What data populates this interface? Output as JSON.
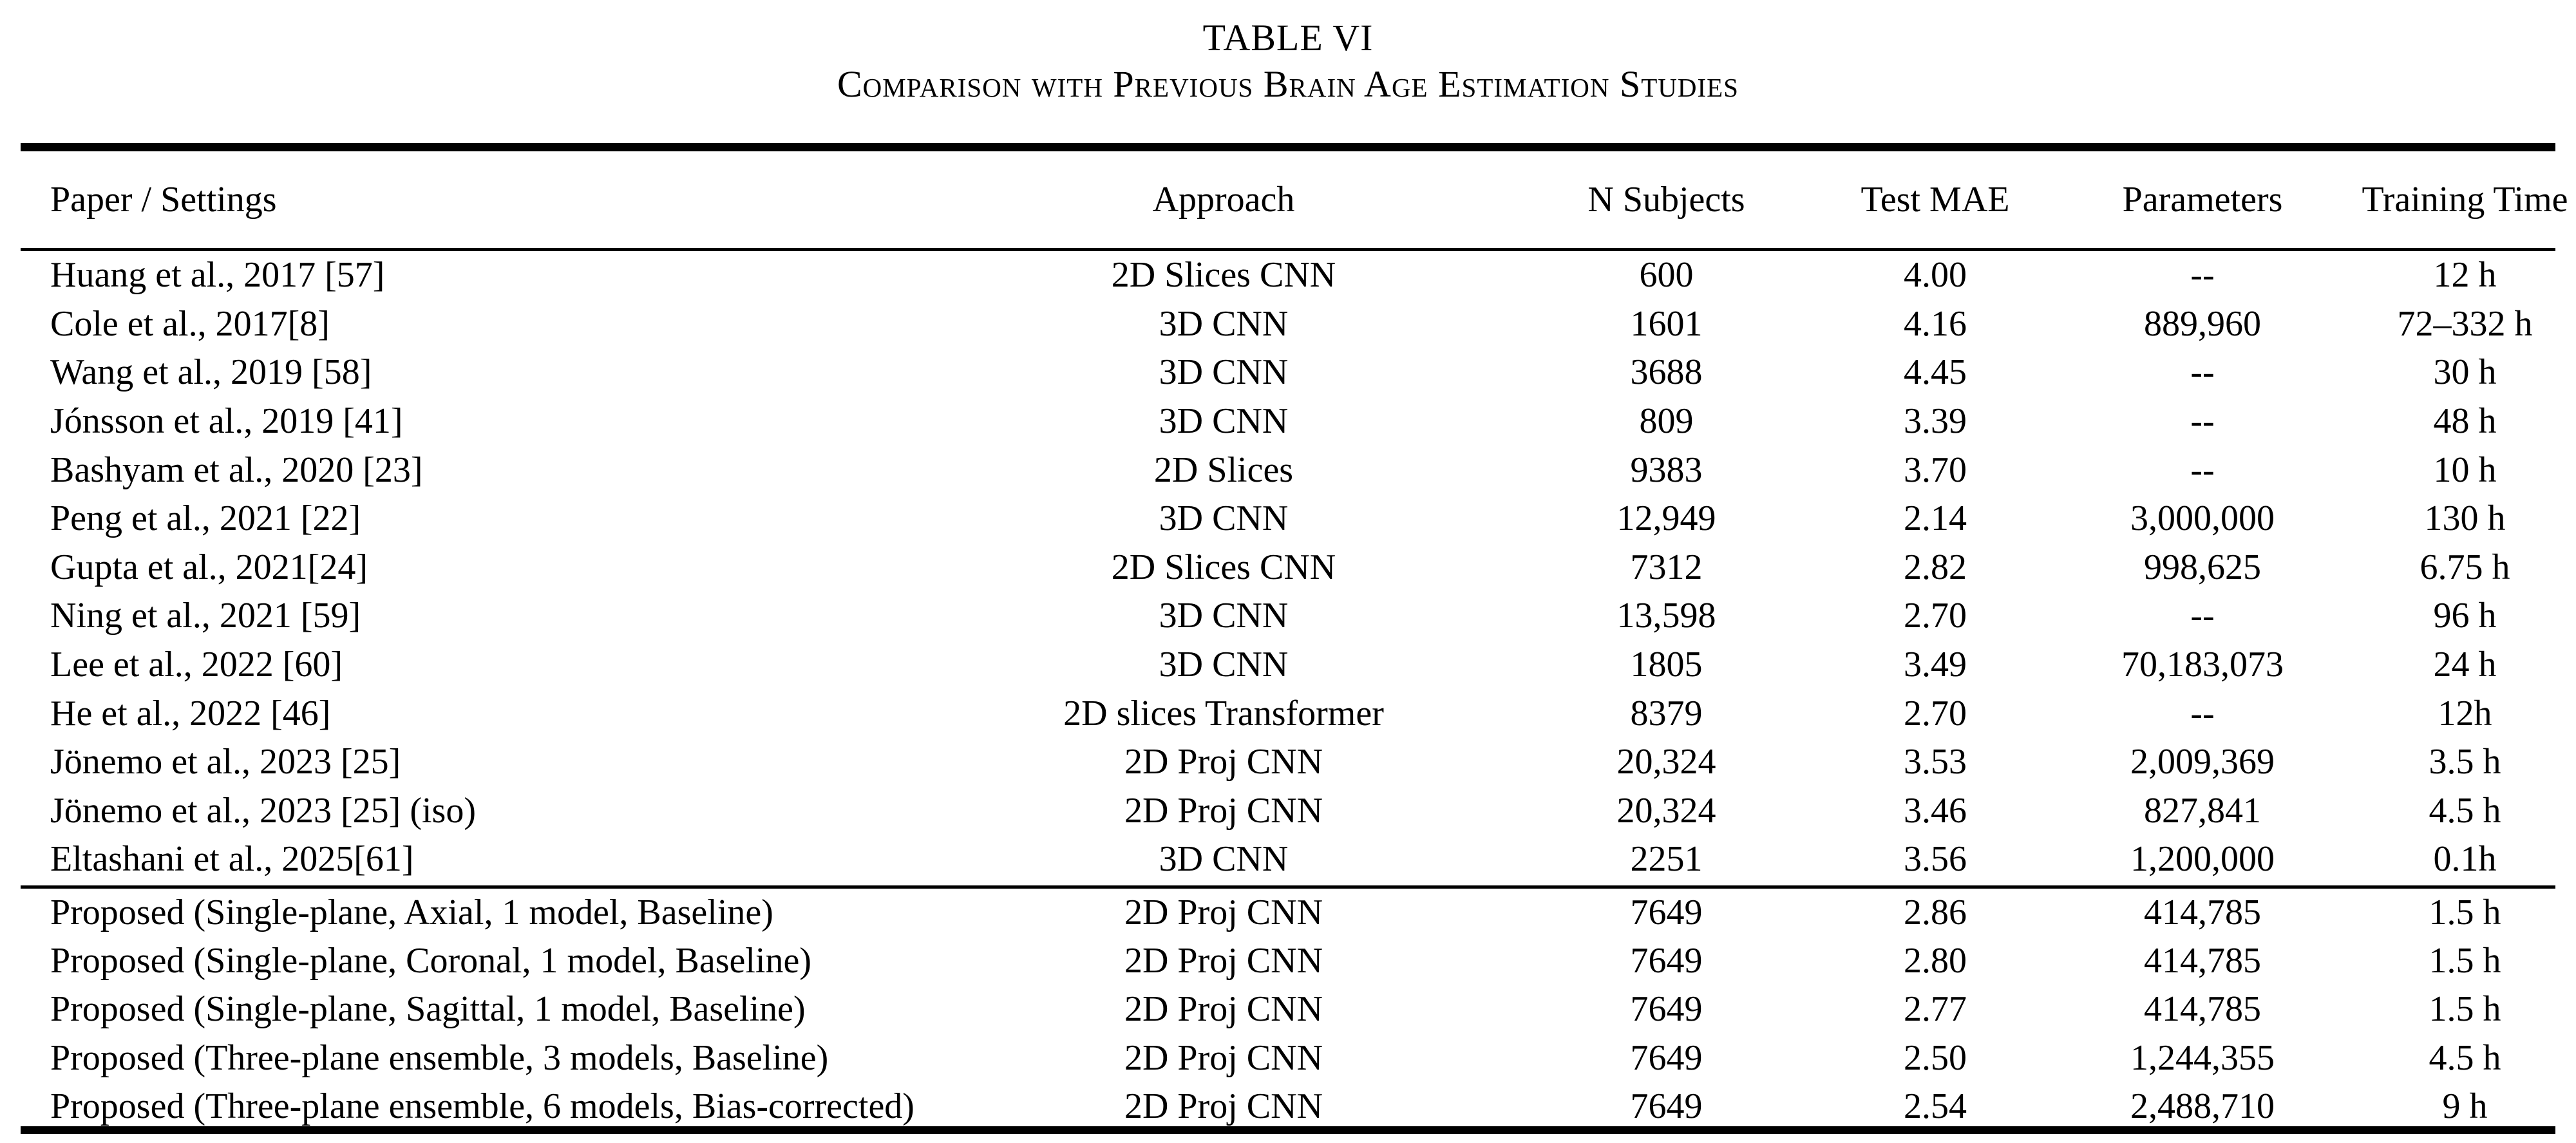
{
  "table_label": "TABLE VI",
  "table_caption": "Comparison with Previous Brain Age Estimation Studies",
  "columns": [
    "Paper / Settings",
    "Approach",
    "N Subjects",
    "Test MAE",
    "Parameters",
    "Training Time"
  ],
  "rows": [
    [
      "Huang et al., 2017 [57]",
      "2D Slices CNN",
      "600",
      "4.00",
      "--",
      "12 h"
    ],
    [
      "Cole et al., 2017[8]",
      "3D CNN",
      "1601",
      "4.16",
      "889,960",
      "72–332 h"
    ],
    [
      "Wang et al., 2019 [58]",
      "3D CNN",
      "3688",
      "4.45",
      "--",
      "30 h"
    ],
    [
      "Jónsson et al., 2019 [41]",
      "3D CNN",
      "809",
      "3.39",
      "--",
      "48 h"
    ],
    [
      "Bashyam et al., 2020 [23]",
      "2D Slices",
      "9383",
      "3.70",
      "--",
      "10 h"
    ],
    [
      "Peng et al., 2021 [22]",
      "3D CNN",
      "12,949",
      "2.14",
      "3,000,000",
      "130 h"
    ],
    [
      "Gupta et al., 2021[24]",
      "2D Slices CNN",
      "7312",
      "2.82",
      "998,625",
      "6.75 h"
    ],
    [
      "Ning et al., 2021 [59]",
      "3D CNN",
      "13,598",
      "2.70",
      "--",
      "96 h"
    ],
    [
      "Lee et al., 2022 [60]",
      "3D CNN",
      "1805",
      "3.49",
      "70,183,073",
      "24 h"
    ],
    [
      "He et al., 2022 [46]",
      "2D slices Transformer",
      "8379",
      "2.70",
      "--",
      "12h"
    ],
    [
      "Jönemo et al., 2023 [25]",
      "2D Proj CNN",
      "20,324",
      "3.53",
      "2,009,369",
      "3.5 h"
    ],
    [
      "Jönemo et al., 2023 [25] (iso)",
      "2D Proj CNN",
      "20,324",
      "3.46",
      "827,841",
      "4.5 h"
    ],
    [
      "Eltashani et al., 2025[61]",
      "3D CNN",
      "2251",
      "3.56",
      "1,200,000",
      "0.1h"
    ]
  ],
  "proposed_rows": [
    [
      "Proposed (Single-plane, Axial, 1 model, Baseline)",
      "2D Proj CNN",
      "7649",
      "2.86",
      "414,785",
      "1.5 h"
    ],
    [
      "Proposed (Single-plane, Coronal, 1 model, Baseline)",
      "2D Proj CNN",
      "7649",
      "2.80",
      "414,785",
      "1.5 h"
    ],
    [
      "Proposed (Single-plane, Sagittal, 1 model, Baseline)",
      "2D Proj CNN",
      "7649",
      "2.77",
      "414,785",
      "1.5 h"
    ],
    [
      "Proposed (Three-plane ensemble, 3 models, Baseline)",
      "2D Proj CNN",
      "7649",
      "2.50",
      "1,244,355",
      "4.5 h"
    ],
    [
      "Proposed (Three-plane ensemble, 6 models, Bias-corrected)",
      "2D Proj CNN",
      "7649",
      "2.54",
      "2,488,710",
      "9 h"
    ]
  ]
}
